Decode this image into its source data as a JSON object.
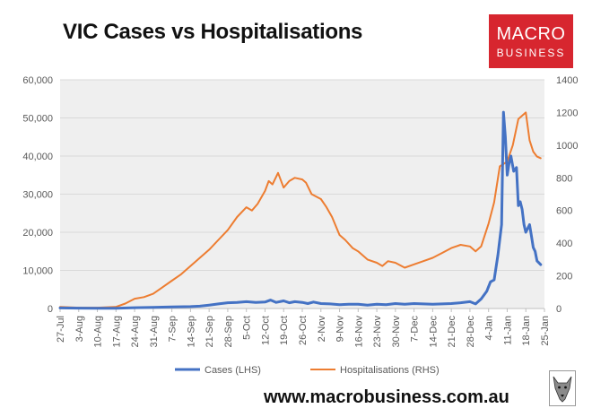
{
  "title": "VIC Cases vs Hospitalisations",
  "logo": {
    "line1": "MACRO",
    "line2": "BUSINESS",
    "bg_color": "#d7262f"
  },
  "footer_url": "www.macrobusiness.com.au",
  "wolf_icon": "wolf-head-icon",
  "chart_data": {
    "type": "line",
    "title": "VIC Cases vs Hospitalisations",
    "grid": true,
    "legend_position": "bottom",
    "x_tick_labels": [
      "27-Jul",
      "3-Aug",
      "10-Aug",
      "17-Aug",
      "24-Aug",
      "31-Aug",
      "7-Sep",
      "14-Sep",
      "21-Sep",
      "28-Sep",
      "5-Oct",
      "12-Oct",
      "19-Oct",
      "26-Oct",
      "2-Nov",
      "9-Nov",
      "16-Nov",
      "23-Nov",
      "30-Nov",
      "7-Dec",
      "14-Dec",
      "21-Dec",
      "28-Dec",
      "4-Jan",
      "11-Jan",
      "18-Jan",
      "25-Jan"
    ],
    "y_left": {
      "min": 0,
      "max": 60000,
      "step": 10000,
      "tick_labels": [
        "0",
        "10,000",
        "20,000",
        "30,000",
        "40,000",
        "50,000",
        "60,000"
      ]
    },
    "y_right": {
      "min": 0,
      "max": 1400,
      "step": 200,
      "tick_labels": [
        "0",
        "200",
        "400",
        "600",
        "800",
        "1000",
        "1200",
        "1400"
      ]
    },
    "x_range": [
      0,
      26
    ],
    "series": [
      {
        "name": "Cases (LHS)",
        "axis": "left",
        "color": "#4472c4",
        "x": [
          0,
          1,
          2,
          3,
          4,
          5,
          6,
          7,
          7.5,
          8,
          8.5,
          9,
          9.5,
          10,
          10.5,
          11,
          11.3,
          11.6,
          12,
          12.3,
          12.6,
          13,
          13.3,
          13.6,
          14,
          14.5,
          15,
          15.5,
          16,
          16.5,
          17,
          17.5,
          18,
          18.5,
          19,
          19.5,
          20,
          20.5,
          21,
          21.5,
          22,
          22.3,
          22.6,
          22.9,
          23.1,
          23.3,
          23.5,
          23.7,
          23.8,
          23.9,
          24.0,
          24.1,
          24.2,
          24.35,
          24.5,
          24.6,
          24.7,
          24.8,
          24.9,
          25.0,
          25.1,
          25.2,
          25.3,
          25.4,
          25.5,
          25.6,
          25.8
        ],
        "values": [
          150,
          100,
          50,
          50,
          200,
          300,
          400,
          500,
          600,
          900,
          1200,
          1500,
          1600,
          1800,
          1600,
          1700,
          2200,
          1600,
          2000,
          1500,
          1800,
          1600,
          1300,
          1700,
          1300,
          1200,
          1000,
          1100,
          1100,
          900,
          1100,
          1000,
          1300,
          1100,
          1300,
          1200,
          1100,
          1200,
          1300,
          1500,
          1800,
          1200,
          2500,
          4500,
          7000,
          7500,
          14000,
          22000,
          51500,
          45000,
          35000,
          38000,
          40000,
          36000,
          37000,
          27000,
          28000,
          26000,
          22000,
          20000,
          21000,
          22000,
          19000,
          16000,
          15000,
          12500,
          11500
        ]
      },
      {
        "name": "Hospitalisations (RHS)",
        "axis": "right",
        "color": "#ed7d31",
        "x": [
          0,
          1,
          2,
          3,
          3.5,
          4,
          4.5,
          5,
          5.5,
          6,
          6.5,
          7,
          7.5,
          8,
          8.5,
          9,
          9.5,
          10,
          10.3,
          10.6,
          11,
          11.2,
          11.4,
          11.7,
          12,
          12.3,
          12.6,
          13,
          13.2,
          13.5,
          14,
          14.3,
          14.6,
          15,
          15.3,
          15.7,
          16,
          16.5,
          17,
          17.3,
          17.6,
          18,
          18.5,
          19,
          19.5,
          20,
          20.5,
          21,
          21.5,
          22,
          22.3,
          22.6,
          23,
          23.3,
          23.6,
          24,
          24.3,
          24.6,
          25,
          25.2,
          25.4,
          25.6,
          25.8
        ],
        "values": [
          10,
          5,
          5,
          10,
          30,
          60,
          70,
          90,
          130,
          170,
          210,
          260,
          310,
          360,
          420,
          480,
          560,
          620,
          600,
          640,
          720,
          780,
          760,
          830,
          740,
          780,
          800,
          790,
          770,
          700,
          670,
          620,
          560,
          450,
          420,
          370,
          350,
          300,
          280,
          260,
          290,
          280,
          250,
          270,
          290,
          310,
          340,
          370,
          390,
          380,
          350,
          380,
          520,
          650,
          870,
          900,
          1000,
          1160,
          1200,
          1030,
          960,
          930,
          920
        ]
      }
    ]
  }
}
